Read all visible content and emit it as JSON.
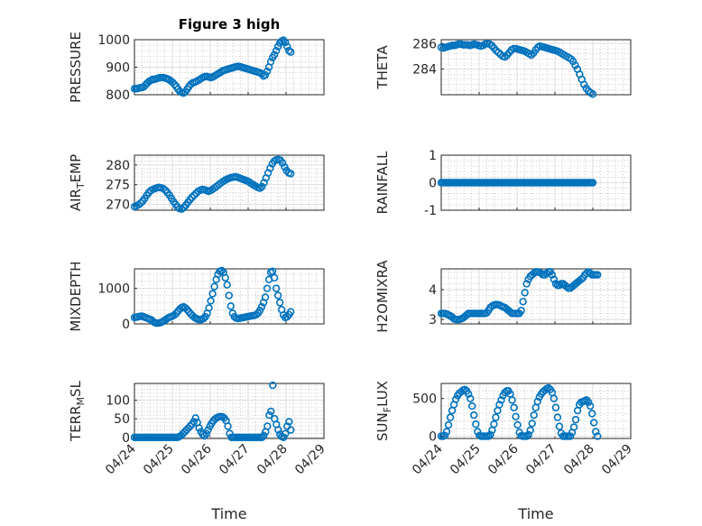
{
  "figure": {
    "title": "Figure 3 high",
    "marker_color": "#0072bd",
    "x_tick_labels": [
      "04/24",
      "04/25",
      "04/26",
      "04/27",
      "04/28",
      "04/29"
    ]
  },
  "chart_data": [
    {
      "id": "pressure",
      "type": "scatter",
      "title": "Figure 3 high",
      "xlabel": "",
      "ylabel": "PRESSURE",
      "ylabel_sub": "",
      "x_domain": [
        "2024-04-24",
        "2024-04-29"
      ],
      "ylim": [
        800,
        1000
      ],
      "yticks": [
        800,
        900,
        1000
      ],
      "series": [
        {
          "name": "",
          "x_range": [
            "2024-04-24",
            "2024-04-28T03:00"
          ],
          "y": [
            822,
            822,
            823,
            825,
            826,
            828,
            835,
            842,
            848,
            852,
            856,
            856,
            858,
            860,
            862,
            862,
            862,
            860,
            858,
            855,
            850,
            845,
            838,
            830,
            820,
            812,
            808,
            806,
            810,
            820,
            830,
            838,
            843,
            845,
            848,
            852,
            856,
            860,
            864,
            866,
            866,
            864,
            862,
            864,
            868,
            872,
            876,
            880,
            884,
            888,
            890,
            892,
            894,
            896,
            898,
            900,
            902,
            903,
            902,
            900,
            898,
            896,
            894,
            892,
            890,
            888,
            886,
            884,
            882,
            880,
            876,
            868,
            872,
            885,
            900,
            920,
            935,
            945,
            960,
            975,
            988,
            995,
            998,
            990,
            975,
            960,
            955
          ]
        }
      ]
    },
    {
      "id": "theta",
      "type": "scatter",
      "title": "",
      "xlabel": "",
      "ylabel": "THETA",
      "ylabel_sub": "",
      "x_domain": [
        "2024-04-24",
        "2024-04-29"
      ],
      "ylim": [
        282,
        286.3
      ],
      "yticks": [
        284,
        286
      ],
      "series": [
        {
          "name": "",
          "x_range": [
            "2024-04-24",
            "2024-04-28"
          ],
          "y": [
            285.7,
            285.65,
            285.7,
            285.75,
            285.8,
            285.85,
            285.85,
            285.9,
            285.95,
            285.95,
            285.9,
            285.9,
            285.9,
            285.85,
            285.9,
            285.95,
            285.9,
            285.85,
            285.8,
            285.85,
            285.95,
            286.0,
            285.95,
            285.85,
            285.65,
            285.45,
            285.3,
            285.15,
            285.0,
            284.95,
            285.1,
            285.3,
            285.5,
            285.6,
            285.6,
            285.55,
            285.5,
            285.45,
            285.4,
            285.3,
            285.2,
            285.1,
            285.25,
            285.5,
            285.7,
            285.8,
            285.75,
            285.7,
            285.65,
            285.6,
            285.55,
            285.5,
            285.45,
            285.4,
            285.3,
            285.2,
            285.1,
            285.0,
            284.9,
            284.8,
            284.6,
            284.3,
            284.0,
            283.6,
            283.2,
            282.8,
            282.5,
            282.3,
            282.15,
            282.05
          ]
        }
      ]
    },
    {
      "id": "air-temp",
      "type": "scatter",
      "title": "",
      "xlabel": "",
      "ylabel": "AIR",
      "ylabel_sub": "T",
      "ylabel_tail": "EMP",
      "x_domain": [
        "2024-04-24",
        "2024-04-29"
      ],
      "ylim": [
        268.5,
        282.5
      ],
      "yticks": [
        270,
        275,
        280
      ],
      "series": [
        {
          "name": "",
          "x_range": [
            "2024-04-24",
            "2024-04-28T03:00"
          ],
          "y": [
            269.4,
            269.6,
            269.9,
            270.3,
            270.8,
            271.5,
            272.3,
            273.0,
            273.5,
            273.8,
            274.0,
            274.2,
            274.3,
            274.2,
            274.0,
            273.6,
            273.0,
            272.3,
            271.5,
            270.7,
            270.0,
            269.3,
            268.9,
            268.8,
            269.2,
            269.8,
            270.5,
            271.2,
            271.8,
            272.3,
            272.8,
            273.3,
            273.6,
            273.8,
            273.7,
            273.5,
            273.3,
            273.5,
            273.8,
            274.2,
            274.6,
            275.0,
            275.4,
            275.8,
            276.1,
            276.4,
            276.6,
            276.8,
            276.9,
            277.0,
            276.9,
            276.7,
            276.5,
            276.3,
            276.1,
            275.9,
            275.6,
            275.2,
            274.9,
            274.6,
            274.3,
            274.1,
            274.5,
            275.5,
            276.7,
            278.0,
            279.2,
            280.3,
            281.0,
            281.3,
            281.4,
            281.2,
            280.5,
            279.5,
            278.6,
            278.0,
            277.8
          ]
        }
      ]
    },
    {
      "id": "rainfall",
      "type": "scatter",
      "title": "",
      "xlabel": "",
      "ylabel": "RAINFALL",
      "ylabel_sub": "",
      "x_domain": [
        "2024-04-24",
        "2024-04-29"
      ],
      "ylim": [
        -1,
        1
      ],
      "yticks": [
        -1,
        0,
        1
      ],
      "series": [
        {
          "name": "",
          "x_range": [
            "2024-04-24",
            "2024-04-28"
          ],
          "count": 97,
          "constant": 0
        }
      ]
    },
    {
      "id": "mixdepth",
      "type": "scatter",
      "title": "",
      "xlabel": "",
      "ylabel": "MIXDEPTH",
      "ylabel_sub": "",
      "x_domain": [
        "2024-04-24",
        "2024-04-29"
      ],
      "ylim": [
        0,
        1550
      ],
      "yticks": [
        0,
        1000
      ],
      "series": [
        {
          "name": "",
          "x_range": [
            "2024-04-24",
            "2024-04-28T03:00"
          ],
          "y": [
            180,
            190,
            200,
            210,
            220,
            200,
            180,
            160,
            140,
            120,
            80,
            40,
            20,
            20,
            30,
            50,
            80,
            110,
            150,
            180,
            200,
            220,
            250,
            300,
            360,
            420,
            460,
            480,
            450,
            400,
            340,
            280,
            230,
            180,
            150,
            130,
            120,
            130,
            150,
            200,
            300,
            450,
            650,
            850,
            1050,
            1250,
            1400,
            1480,
            1500,
            1450,
            1300,
            1100,
            800,
            500,
            300,
            200,
            160,
            150,
            160,
            170,
            180,
            190,
            200,
            210,
            220,
            230,
            240,
            260,
            300,
            380,
            480,
            600,
            750,
            1000,
            1250,
            1450,
            1480,
            1300,
            1000,
            800,
            600,
            400,
            250,
            180,
            200,
            260,
            340
          ]
        }
      ]
    },
    {
      "id": "h2omixra",
      "type": "scatter",
      "title": "",
      "xlabel": "",
      "ylabel": "H2OMIXRA",
      "ylabel_sub": "",
      "x_domain": [
        "2024-04-24",
        "2024-04-29"
      ],
      "ylim": [
        2.85,
        4.7
      ],
      "yticks": [
        3,
        4
      ],
      "series": [
        {
          "name": "",
          "x_range": [
            "2024-04-24",
            "2024-04-28T03:00"
          ],
          "y": [
            3.2,
            3.2,
            3.2,
            3.18,
            3.15,
            3.12,
            3.08,
            3.02,
            3.0,
            3.0,
            3.0,
            3.02,
            3.05,
            3.1,
            3.15,
            3.2,
            3.2,
            3.2,
            3.2,
            3.2,
            3.2,
            3.2,
            3.2,
            3.2,
            3.2,
            3.22,
            3.3,
            3.4,
            3.45,
            3.48,
            3.5,
            3.5,
            3.48,
            3.45,
            3.42,
            3.4,
            3.35,
            3.3,
            3.25,
            3.2,
            3.2,
            3.2,
            3.2,
            3.2,
            3.3,
            3.6,
            3.9,
            4.2,
            4.35,
            4.45,
            4.5,
            4.55,
            4.6,
            4.6,
            4.58,
            4.55,
            4.5,
            4.5,
            4.55,
            4.6,
            4.6,
            4.5,
            4.35,
            4.2,
            4.15,
            4.15,
            4.2,
            4.2,
            4.15,
            4.1,
            4.05,
            4.05,
            4.1,
            4.15,
            4.2,
            4.25,
            4.3,
            4.35,
            4.4,
            4.5,
            4.55,
            4.6,
            4.55,
            4.5,
            4.5,
            4.5,
            4.5
          ]
        }
      ]
    },
    {
      "id": "terr-msl",
      "type": "scatter",
      "title": "",
      "xlabel": "Time",
      "ylabel": "TERR",
      "ylabel_sub": "M",
      "ylabel_tail": "SL",
      "x_domain": [
        "2024-04-24",
        "2024-04-29"
      ],
      "ylim": [
        -3,
        145
      ],
      "yticks": [
        0,
        50,
        100
      ],
      "series": [
        {
          "name": "",
          "x_range": [
            "2024-04-24",
            "2024-04-28T03:00"
          ],
          "y": [
            0,
            0,
            0,
            0,
            0,
            0,
            0,
            0,
            0,
            0,
            0,
            0,
            0,
            0,
            0,
            0,
            0,
            0,
            0,
            0,
            0,
            0,
            0,
            0,
            0,
            2,
            5,
            10,
            15,
            20,
            25,
            30,
            35,
            42,
            52,
            40,
            25,
            15,
            8,
            4,
            10,
            20,
            30,
            38,
            45,
            50,
            53,
            55,
            56,
            55,
            52,
            45,
            30,
            10,
            0,
            0,
            0,
            0,
            0,
            0,
            0,
            0,
            0,
            0,
            0,
            0,
            0,
            0,
            0,
            0,
            0,
            0,
            5,
            15,
            30,
            60,
            70,
            140,
            50,
            35,
            20,
            8,
            2,
            0,
            10,
            30,
            42,
            20
          ]
        }
      ]
    },
    {
      "id": "sun-flux",
      "type": "scatter",
      "title": "",
      "xlabel": "Time",
      "ylabel": "SUN",
      "ylabel_sub": "F",
      "ylabel_tail": "LUX",
      "x_domain": [
        "2024-04-24",
        "2024-04-29"
      ],
      "ylim": [
        -30,
        700
      ],
      "yticks": [
        0,
        500
      ],
      "series": [
        {
          "name": "",
          "x_range": [
            "2024-04-24",
            "2024-04-28T03:00"
          ],
          "y": [
            0,
            0,
            10,
            60,
            150,
            250,
            340,
            420,
            490,
            540,
            570,
            590,
            610,
            620,
            600,
            560,
            500,
            400,
            280,
            160,
            60,
            10,
            0,
            0,
            0,
            0,
            0,
            20,
            80,
            160,
            250,
            340,
            420,
            480,
            540,
            580,
            600,
            600,
            560,
            480,
            380,
            260,
            150,
            50,
            5,
            0,
            0,
            0,
            20,
            80,
            170,
            280,
            380,
            460,
            520,
            560,
            590,
            610,
            630,
            640,
            620,
            580,
            500,
            380,
            250,
            130,
            40,
            0,
            0,
            0,
            0,
            0,
            50,
            120,
            220,
            340,
            420,
            450,
            460,
            470,
            480,
            450,
            400,
            300,
            180,
            60,
            0
          ]
        }
      ]
    }
  ]
}
